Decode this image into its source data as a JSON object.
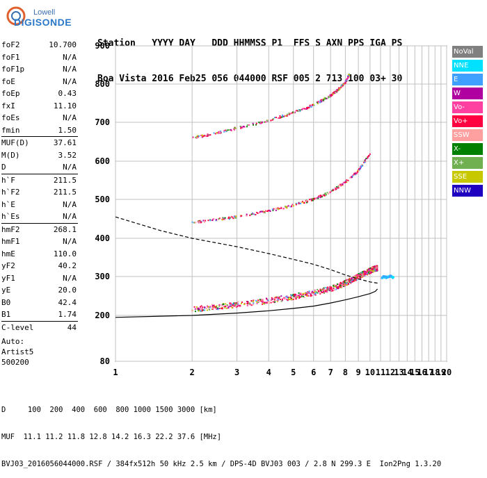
{
  "brand": {
    "line1": "Lowell",
    "line2": "DIGISONDE"
  },
  "header": {
    "labels": "Station   YYYY DAY   DDD HHMMSS P1  FFS S AXN PPS IGA PS",
    "values": "Boa Vista 2016 Feb25 056 044000 RSF 005 2 713 100 03+ 30"
  },
  "params": [
    {
      "label": "foF2",
      "value": "10.700"
    },
    {
      "label": "foF1",
      "value": "N/A"
    },
    {
      "label": "foF1p",
      "value": "N/A"
    },
    {
      "label": "foE",
      "value": "N/A"
    },
    {
      "label": "foEp",
      "value": "0.43"
    },
    {
      "label": "fxI",
      "value": "11.10"
    },
    {
      "label": "foEs",
      "value": "N/A"
    },
    {
      "label": "fmin",
      "value": "1.50"
    },
    {
      "sep": true
    },
    {
      "label": "MUF(D)",
      "value": "37.61"
    },
    {
      "label": "M(D)",
      "value": "3.52"
    },
    {
      "label": "D",
      "value": "N/A"
    },
    {
      "sep": true
    },
    {
      "label": "h`F",
      "value": "211.5"
    },
    {
      "label": "h`F2",
      "value": "211.5"
    },
    {
      "label": "h`E",
      "value": "N/A"
    },
    {
      "label": "h`Es",
      "value": "N/A"
    },
    {
      "sep": true
    },
    {
      "label": "hmF2",
      "value": "268.1"
    },
    {
      "label": "hmF1",
      "value": "N/A"
    },
    {
      "label": "hmE",
      "value": "110.0"
    },
    {
      "label": "yF2",
      "value": "40.2"
    },
    {
      "label": "yF1",
      "value": "N/A"
    },
    {
      "label": "yE",
      "value": "20.0"
    },
    {
      "label": "B0",
      "value": "42.4"
    },
    {
      "label": "B1",
      "value": "1.74"
    },
    {
      "sep": true
    },
    {
      "label": "C-level",
      "value": "44"
    }
  ],
  "auto": {
    "line1": "Auto:",
    "line2": "Artist5",
    "line3": "500200"
  },
  "legend": [
    {
      "label": "NoVal",
      "color": "#808080"
    },
    {
      "label": "NNE",
      "color": "#00e0ff"
    },
    {
      "label": "E",
      "color": "#3fa0ff"
    },
    {
      "label": "W",
      "color": "#b000a0"
    },
    {
      "label": "Vo-",
      "color": "#ff40a0"
    },
    {
      "label": "Vo+",
      "color": "#ff0040"
    },
    {
      "label": "SSW",
      "color": "#ffa0a0"
    },
    {
      "label": "X-",
      "color": "#008000"
    },
    {
      "label": "X+",
      "color": "#70b050"
    },
    {
      "label": "SSE",
      "color": "#c8c800"
    },
    {
      "label": "NNW",
      "color": "#2000c0"
    }
  ],
  "footer": {
    "line1": "D     100  200  400  600  800 1000 1500 3000 [km]",
    "line2": "MUF  11.1 11.2 11.8 12.8 14.2 16.3 22.2 37.6 [MHz]",
    "line3": "BVJ03_2016056044000.RSF / 384fx512h 50 kHz 2.5 km / DPS-4D BVJ03 003 / 2.8 N 299.3 E  Ion2Png 1.3.20"
  },
  "chart_data": {
    "type": "scatter",
    "title": "",
    "xlabel": "",
    "ylabel": "",
    "xlim": [
      1,
      20
    ],
    "ylim": [
      80,
      900
    ],
    "x_ticks": [
      1,
      2,
      3,
      4,
      5,
      6,
      7,
      8,
      9,
      10,
      11,
      12,
      13,
      14,
      15,
      16,
      17,
      18,
      19,
      20
    ],
    "y_ticks": [
      80,
      200,
      300,
      400,
      500,
      600,
      700,
      800,
      900
    ],
    "grid": true,
    "x_scale": "log",
    "y_scale": "mixed",
    "traces": [
      {
        "name": "F2 trace",
        "x": [
          2.0,
          2.5,
          3.0,
          4.0,
          5.0,
          6.0,
          7.0,
          7.8,
          8.4,
          9.0,
          9.5,
          10.0,
          10.4,
          10.7
        ],
        "y": [
          215,
          222,
          228,
          238,
          248,
          258,
          268,
          280,
          290,
          300,
          308,
          315,
          320,
          322
        ]
      },
      {
        "name": "2F2 trace",
        "x": [
          2.0,
          2.5,
          3.0,
          4.0,
          5.0,
          6.0,
          7.0,
          8.0,
          9.0,
          10.0
        ],
        "y": [
          440,
          448,
          455,
          470,
          485,
          500,
          520,
          545,
          575,
          620
        ]
      },
      {
        "name": "3F2 trace",
        "x": [
          2.0,
          2.5,
          3.0,
          4.0,
          5.0,
          6.0,
          7.0,
          7.5,
          8.0,
          8.3
        ],
        "y": [
          660,
          672,
          685,
          705,
          725,
          745,
          770,
          785,
          805,
          825
        ]
      },
      {
        "name": "E-region scatter",
        "x": [
          11.1,
          11.3,
          11.6,
          12.0,
          12.4
        ],
        "y": [
          295,
          300,
          298,
          302,
          296
        ]
      }
    ],
    "profile_solid": {
      "x": [
        1.0,
        2.0,
        3.0,
        4.0,
        5.0,
        6.0,
        7.0,
        8.0,
        9.0,
        10.0,
        10.5,
        10.7
      ],
      "y": [
        195,
        200,
        206,
        212,
        218,
        224,
        232,
        240,
        248,
        256,
        262,
        268
      ]
    },
    "profile_dashed": {
      "x": [
        1.0,
        1.5,
        2.0,
        3.0,
        4.0,
        5.0,
        6.0,
        7.0,
        8.0,
        9.0,
        10.0,
        10.7
      ],
      "y": [
        455,
        420,
        400,
        378,
        360,
        345,
        332,
        318,
        304,
        294,
        286,
        283
      ]
    }
  }
}
